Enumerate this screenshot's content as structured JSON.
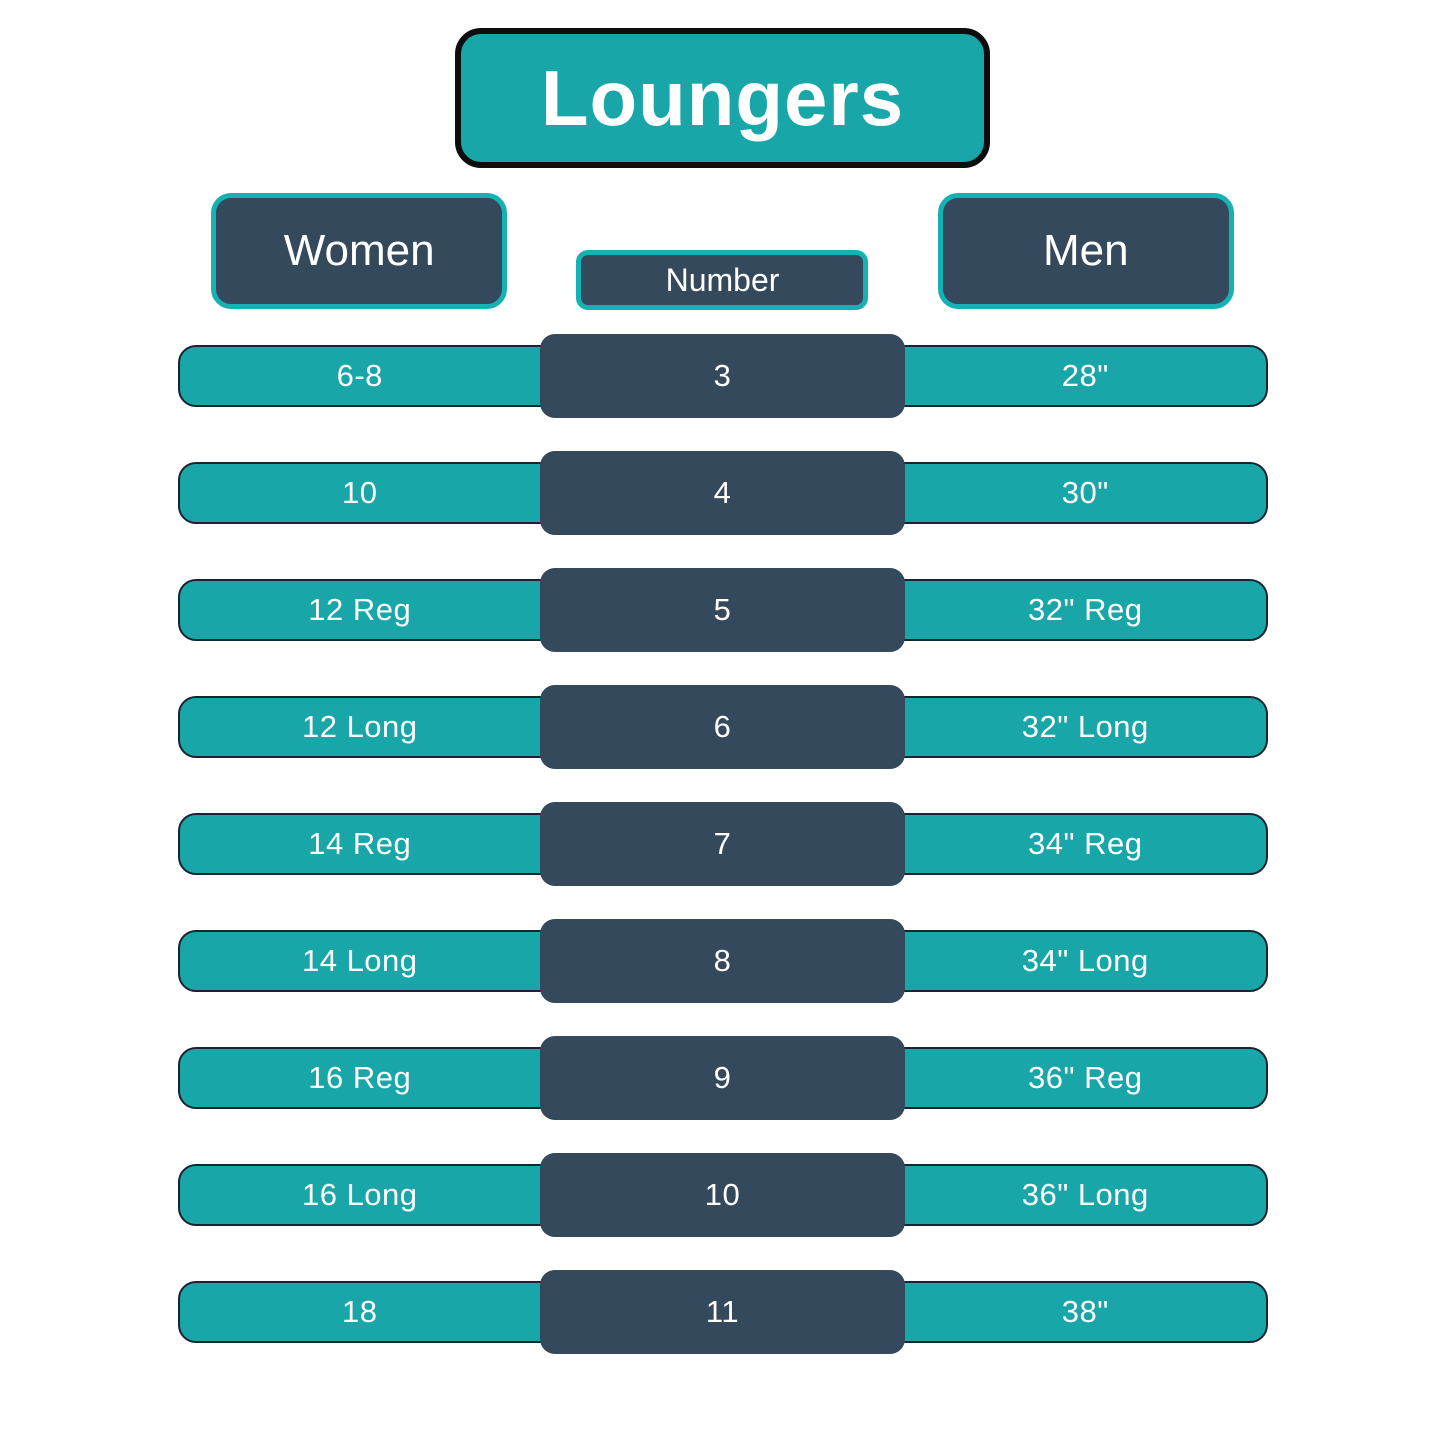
{
  "title": "Loungers",
  "columns": {
    "women": "Women",
    "number": "Number",
    "men": "Men"
  },
  "rows": [
    {
      "women": "6-8",
      "number": "3",
      "men": "28\""
    },
    {
      "women": "10",
      "number": "4",
      "men": "30\""
    },
    {
      "women": "12 Reg",
      "number": "5",
      "men": "32\" Reg"
    },
    {
      "women": "12 Long",
      "number": "6",
      "men": "32\" Long"
    },
    {
      "women": "14 Reg",
      "number": "7",
      "men": "34\" Reg"
    },
    {
      "women": "14 Long",
      "number": "8",
      "men": "34\" Long"
    },
    {
      "women": "16 Reg",
      "number": "9",
      "men": "36\" Reg"
    },
    {
      "women": "16 Long",
      "number": "10",
      "men": "36\" Long"
    },
    {
      "women": "18",
      "number": "11",
      "men": "38\""
    }
  ],
  "chart_data": {
    "type": "table",
    "title": "Loungers",
    "columns": [
      "Women",
      "Number",
      "Men"
    ],
    "rows": [
      [
        "6-8",
        "3",
        "28\""
      ],
      [
        "10",
        "4",
        "30\""
      ],
      [
        "12 Reg",
        "5",
        "32\" Reg"
      ],
      [
        "12 Long",
        "6",
        "32\" Long"
      ],
      [
        "14 Reg",
        "7",
        "34\" Reg"
      ],
      [
        "14 Long",
        "8",
        "34\" Long"
      ],
      [
        "16 Reg",
        "9",
        "36\" Reg"
      ],
      [
        "16 Long",
        "10",
        "36\" Long"
      ],
      [
        "18",
        "11",
        "38\""
      ]
    ]
  },
  "colors": {
    "teal": "#18a6a8",
    "teal_border": "#16b1b4",
    "dark_slate": "#35495c",
    "outline": "#1a2430",
    "text": "#ffffff",
    "black": "#0d0d0d"
  }
}
